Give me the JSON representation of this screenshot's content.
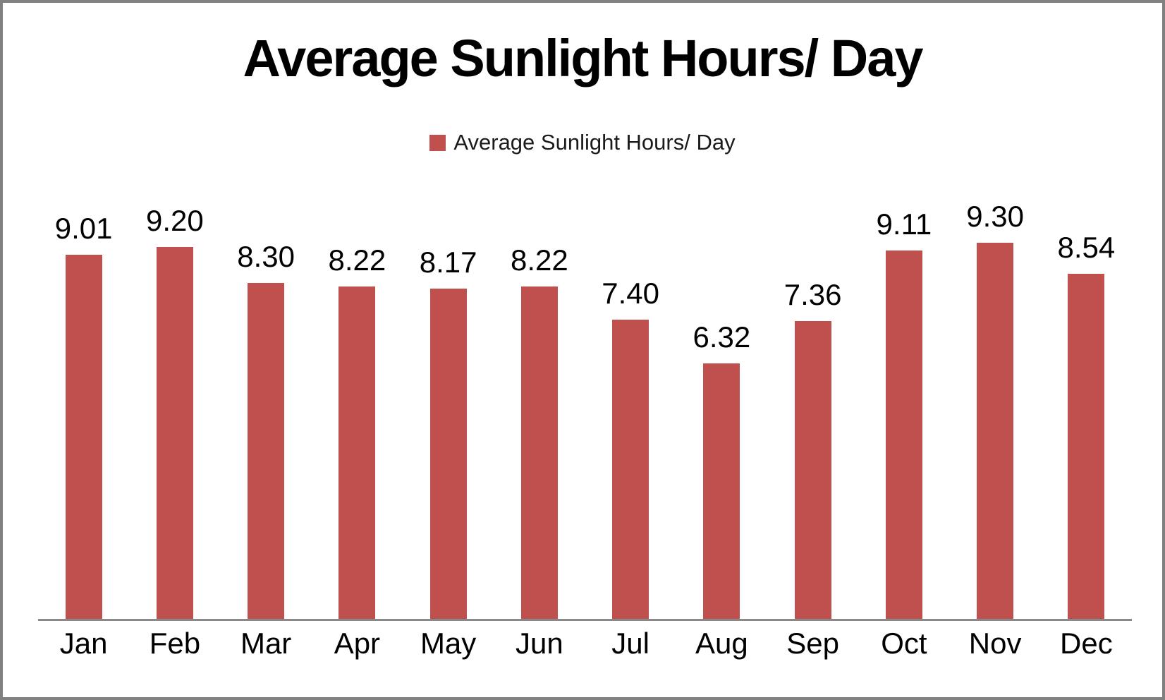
{
  "frame": {
    "border_color": "#808080",
    "background": "#ffffff"
  },
  "title": "Average Sunlight Hours/ Day",
  "legend": {
    "label": "Average Sunlight Hours/ Day",
    "marker_color": "#C0504D"
  },
  "chart_data": {
    "type": "bar",
    "title": "Average Sunlight Hours/ Day",
    "series_name": "Average Sunlight Hours/ Day",
    "categories": [
      "Jan",
      "Feb",
      "Mar",
      "Apr",
      "May",
      "Jun",
      "Jul",
      "Aug",
      "Sep",
      "Oct",
      "Nov",
      "Dec"
    ],
    "values": [
      9.01,
      9.2,
      8.3,
      8.22,
      8.17,
      8.22,
      7.4,
      6.32,
      7.36,
      9.11,
      9.3,
      8.54
    ],
    "value_labels": [
      "9.01",
      "9.20",
      "8.30",
      "8.22",
      "8.17",
      "8.22",
      "7.40",
      "6.32",
      "7.36",
      "9.11",
      "9.30",
      "8.54"
    ],
    "xlabel": "",
    "ylabel": "",
    "ylim": [
      0,
      10
    ],
    "grid": false,
    "value_axis_visible": false,
    "data_labels": true,
    "legend_position": "top",
    "bar_color": "#C0504D",
    "axis_line_color": "#898989",
    "text_color": "#000000"
  }
}
